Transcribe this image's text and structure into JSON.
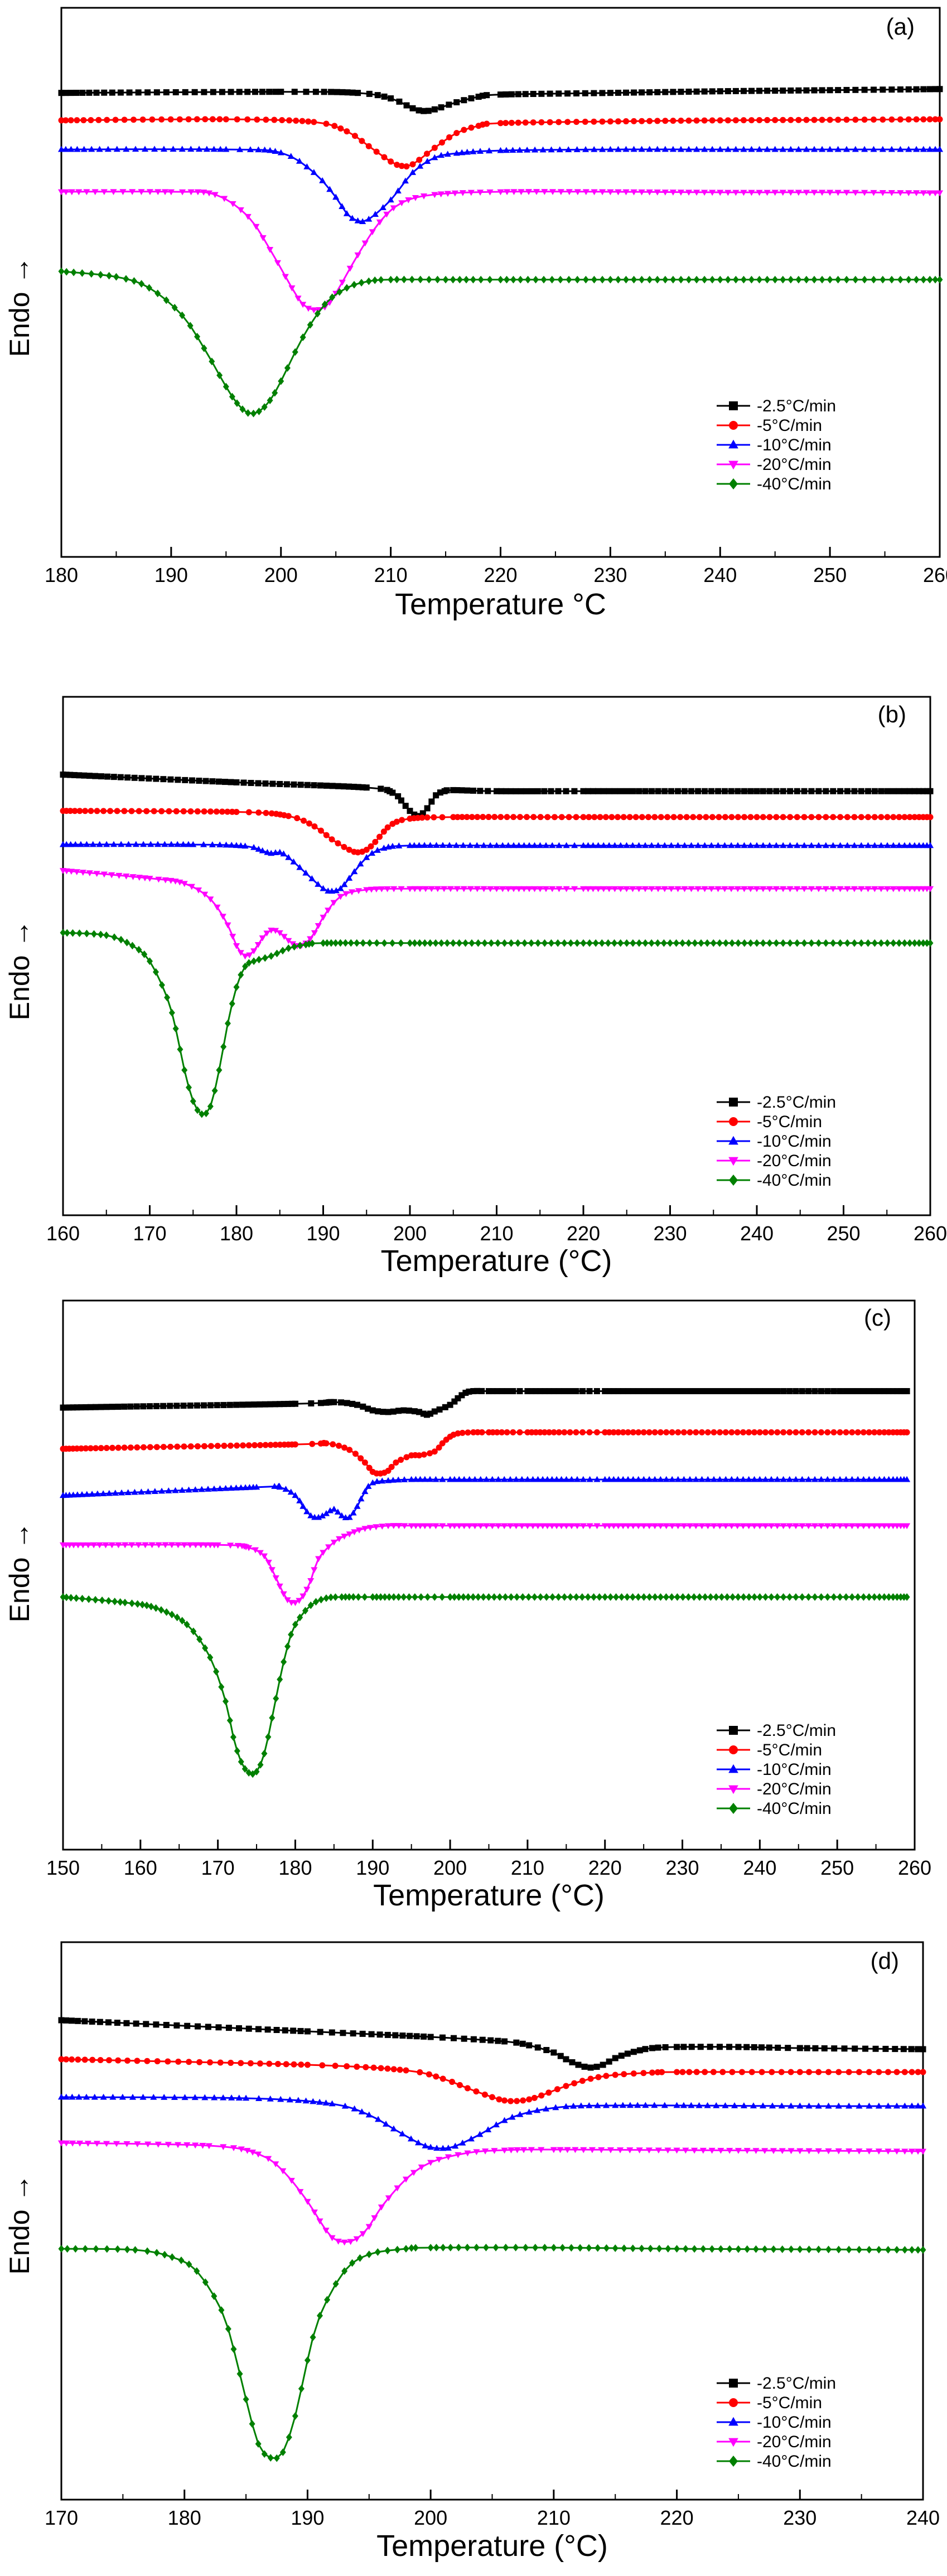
{
  "chart_data": [
    {
      "type": "line",
      "panel_label": "(a)",
      "xlabel": "Temperature °C",
      "ylabel": "Endo →",
      "xlim": [
        180,
        260
      ],
      "xticks": [
        180,
        190,
        200,
        210,
        220,
        230,
        240,
        250,
        260
      ],
      "ylim": [
        0,
        1
      ],
      "grid": false,
      "legend_position": "bottom-right",
      "series": [
        {
          "name": "-2.5°C/min",
          "color": "#000000",
          "marker": "square",
          "x": [
            180,
            200,
            207,
            210,
            212,
            213,
            214,
            216,
            218,
            220,
            230,
            240,
            250,
            260
          ],
          "y": [
            0.845,
            0.847,
            0.845,
            0.835,
            0.817,
            0.812,
            0.815,
            0.828,
            0.838,
            0.842,
            0.845,
            0.848,
            0.85,
            0.852
          ]
        },
        {
          "name": "-5°C/min",
          "color": "#ff0000",
          "marker": "circle",
          "x": [
            180,
            195,
            203,
            206,
            208,
            210,
            211,
            212,
            214,
            216,
            218,
            220,
            230,
            240,
            250,
            260
          ],
          "y": [
            0.795,
            0.797,
            0.792,
            0.775,
            0.748,
            0.72,
            0.712,
            0.715,
            0.745,
            0.772,
            0.785,
            0.79,
            0.793,
            0.795,
            0.796,
            0.797
          ]
        },
        {
          "name": "-10°C/min",
          "color": "#0000ff",
          "marker": "triangle-up",
          "x": [
            180,
            195,
            200,
            203,
            205,
            206,
            207,
            208,
            210,
            212,
            214,
            216,
            220,
            230,
            240,
            250,
            260
          ],
          "y": [
            0.742,
            0.742,
            0.736,
            0.7,
            0.655,
            0.625,
            0.612,
            0.615,
            0.65,
            0.7,
            0.727,
            0.735,
            0.74,
            0.742,
            0.742,
            0.742,
            0.742
          ]
        },
        {
          "name": "-20°C/min",
          "color": "#ff00ff",
          "marker": "triangle-down",
          "x": [
            180,
            190,
            194,
            197,
            199,
            201,
            202,
            203,
            204,
            205,
            207,
            209,
            211,
            214,
            220,
            230,
            240,
            250,
            260
          ],
          "y": [
            0.665,
            0.665,
            0.66,
            0.62,
            0.56,
            0.49,
            0.46,
            0.45,
            0.455,
            0.48,
            0.55,
            0.61,
            0.645,
            0.66,
            0.665,
            0.665,
            0.664,
            0.664,
            0.663
          ]
        },
        {
          "name": "-40°C/min",
          "color": "#008000",
          "marker": "diamond",
          "x": [
            180,
            185,
            188,
            191,
            193,
            195,
            196,
            197,
            198,
            199,
            200,
            202,
            204,
            206,
            208,
            210,
            215,
            220,
            230,
            240,
            250,
            260
          ],
          "y": [
            0.52,
            0.51,
            0.49,
            0.44,
            0.38,
            0.31,
            0.28,
            0.262,
            0.265,
            0.285,
            0.32,
            0.4,
            0.46,
            0.49,
            0.502,
            0.505,
            0.505,
            0.505,
            0.505,
            0.505,
            0.505,
            0.505
          ]
        }
      ]
    },
    {
      "type": "line",
      "panel_label": "(b)",
      "xlabel": "Temperature (°C)",
      "ylabel": "Endo →",
      "xlim": [
        160,
        260
      ],
      "xticks": [
        160,
        170,
        180,
        190,
        200,
        210,
        220,
        230,
        240,
        250,
        260
      ],
      "ylim": [
        0,
        1
      ],
      "grid": false,
      "legend_position": "bottom-right",
      "series": [
        {
          "name": "-2.5°C/min",
          "color": "#000000",
          "marker": "square",
          "x": [
            160,
            180,
            195,
            198,
            199,
            200,
            201,
            202,
            203,
            204,
            205,
            210,
            220,
            240,
            260
          ],
          "y": [
            0.85,
            0.835,
            0.825,
            0.815,
            0.8,
            0.78,
            0.77,
            0.785,
            0.81,
            0.818,
            0.82,
            0.818,
            0.818,
            0.818,
            0.818
          ]
        },
        {
          "name": "-5°C/min",
          "color": "#ff0000",
          "marker": "circle",
          "x": [
            160,
            180,
            186,
            189,
            191,
            193,
            194,
            195,
            196,
            197,
            198,
            200,
            205,
            220,
            240,
            260
          ],
          "y": [
            0.78,
            0.778,
            0.77,
            0.75,
            0.725,
            0.705,
            0.7,
            0.705,
            0.72,
            0.74,
            0.755,
            0.765,
            0.768,
            0.768,
            0.768,
            0.768
          ]
        },
        {
          "name": "-10°C/min",
          "color": "#0000ff",
          "marker": "triangle-up",
          "x": [
            160,
            175,
            181,
            183,
            184,
            185,
            186,
            188,
            190,
            191,
            192,
            193,
            195,
            197,
            200,
            210,
            220,
            240,
            260
          ],
          "y": [
            0.715,
            0.715,
            0.712,
            0.703,
            0.698,
            0.7,
            0.69,
            0.66,
            0.63,
            0.625,
            0.63,
            0.65,
            0.69,
            0.708,
            0.713,
            0.713,
            0.713,
            0.713,
            0.713
          ]
        },
        {
          "name": "-20°C/min",
          "color": "#ff00ff",
          "marker": "triangle-down",
          "x": [
            160,
            170,
            174,
            177,
            179,
            180,
            181,
            182,
            183,
            184,
            185,
            186,
            187,
            188,
            189,
            190,
            192,
            195,
            200,
            210,
            220,
            240,
            260
          ],
          "y": [
            0.665,
            0.65,
            0.64,
            0.61,
            0.56,
            0.52,
            0.5,
            0.51,
            0.535,
            0.55,
            0.545,
            0.53,
            0.52,
            0.525,
            0.545,
            0.575,
            0.615,
            0.628,
            0.63,
            0.63,
            0.63,
            0.63,
            0.63
          ]
        },
        {
          "name": "-40°C/min",
          "color": "#008000",
          "marker": "diamond",
          "x": [
            160,
            165,
            168,
            170,
            172,
            173,
            174,
            175,
            176,
            177,
            178,
            179,
            180,
            181,
            182,
            184,
            186,
            188,
            190,
            200,
            220,
            240,
            260
          ],
          "y": [
            0.545,
            0.54,
            0.52,
            0.49,
            0.42,
            0.36,
            0.28,
            0.22,
            0.195,
            0.21,
            0.28,
            0.37,
            0.44,
            0.48,
            0.49,
            0.5,
            0.515,
            0.522,
            0.525,
            0.525,
            0.525,
            0.525,
            0.525
          ]
        }
      ]
    },
    {
      "type": "line",
      "panel_label": "(c)",
      "xlabel": "Temperature (°C)",
      "ylabel": "Endo →",
      "xlim": [
        150,
        260
      ],
      "xticks": [
        150,
        160,
        170,
        180,
        190,
        200,
        210,
        220,
        230,
        240,
        250,
        260
      ],
      "ylim": [
        0,
        1
      ],
      "grid": false,
      "legend_position": "bottom-right",
      "series": [
        {
          "name": "-2.5°C/min",
          "color": "#000000",
          "marker": "square",
          "x": [
            150,
            180,
            185,
            188,
            190,
            192,
            194,
            196,
            197,
            198,
            200,
            201,
            202,
            203,
            205,
            210,
            220,
            240,
            259
          ],
          "y": [
            0.805,
            0.812,
            0.815,
            0.81,
            0.8,
            0.797,
            0.8,
            0.797,
            0.792,
            0.798,
            0.81,
            0.822,
            0.832,
            0.835,
            0.835,
            0.835,
            0.835,
            0.835,
            0.835
          ]
        },
        {
          "name": "-5°C/min",
          "color": "#ff0000",
          "marker": "circle",
          "x": [
            150,
            180,
            184,
            187,
            189,
            190,
            191,
            192,
            193,
            195,
            196,
            198,
            199,
            200,
            201,
            203,
            205,
            210,
            220,
            240,
            259
          ],
          "y": [
            0.73,
            0.738,
            0.74,
            0.728,
            0.705,
            0.688,
            0.685,
            0.69,
            0.705,
            0.718,
            0.718,
            0.725,
            0.74,
            0.752,
            0.758,
            0.76,
            0.76,
            0.76,
            0.76,
            0.76,
            0.76
          ]
        },
        {
          "name": "-10°C/min",
          "color": "#0000ff",
          "marker": "triangle-up",
          "x": [
            150,
            175,
            178,
            180,
            181,
            182,
            183,
            184,
            185,
            186,
            187,
            188,
            189,
            190,
            192,
            195,
            200,
            210,
            220,
            240,
            259
          ],
          "y": [
            0.645,
            0.66,
            0.66,
            0.645,
            0.625,
            0.608,
            0.605,
            0.612,
            0.62,
            0.608,
            0.605,
            0.625,
            0.652,
            0.668,
            0.672,
            0.674,
            0.674,
            0.674,
            0.674,
            0.674,
            0.674
          ]
        },
        {
          "name": "-20°C/min",
          "color": "#ff00ff",
          "marker": "triangle-down",
          "x": [
            150,
            170,
            174,
            176,
            177,
            178,
            179,
            180,
            181,
            182,
            183,
            185,
            187,
            189,
            192,
            195,
            200,
            210,
            220,
            240,
            259
          ],
          "y": [
            0.555,
            0.555,
            0.55,
            0.535,
            0.51,
            0.48,
            0.455,
            0.45,
            0.462,
            0.49,
            0.53,
            0.56,
            0.575,
            0.585,
            0.59,
            0.59,
            0.59,
            0.59,
            0.59,
            0.59,
            0.59
          ]
        },
        {
          "name": "-40°C/min",
          "color": "#008000",
          "marker": "diamond",
          "x": [
            150,
            158,
            162,
            166,
            169,
            171,
            172,
            173,
            174,
            175,
            176,
            177,
            178,
            179,
            180,
            182,
            184,
            186,
            190,
            200,
            220,
            240,
            259
          ],
          "y": [
            0.46,
            0.45,
            0.44,
            0.41,
            0.35,
            0.27,
            0.205,
            0.16,
            0.14,
            0.142,
            0.175,
            0.24,
            0.31,
            0.37,
            0.41,
            0.445,
            0.458,
            0.46,
            0.46,
            0.46,
            0.46,
            0.46,
            0.46
          ]
        }
      ]
    },
    {
      "type": "line",
      "panel_label": "(d)",
      "xlabel": "Temperature (°C)",
      "ylabel": "Endo →",
      "xlim": [
        170,
        240
      ],
      "xticks": [
        170,
        180,
        190,
        200,
        210,
        220,
        230,
        240
      ],
      "ylim": [
        0,
        1
      ],
      "grid": false,
      "legend_position": "bottom-right",
      "series": [
        {
          "name": "-2.5°C/min",
          "color": "#000000",
          "marker": "square",
          "x": [
            170,
            190,
            200,
            206,
            208,
            210,
            211,
            212,
            213,
            214,
            215,
            216,
            217,
            218,
            220,
            225,
            230,
            240
          ],
          "y": [
            0.86,
            0.84,
            0.83,
            0.822,
            0.815,
            0.802,
            0.79,
            0.78,
            0.775,
            0.78,
            0.792,
            0.8,
            0.806,
            0.81,
            0.812,
            0.812,
            0.81,
            0.808
          ]
        },
        {
          "name": "-5°C/min",
          "color": "#ff0000",
          "marker": "circle",
          "x": [
            170,
            190,
            198,
            201,
            203,
            205,
            206,
            207,
            208,
            209,
            211,
            213,
            215,
            218,
            220,
            230,
            240
          ],
          "y": [
            0.79,
            0.78,
            0.77,
            0.755,
            0.738,
            0.722,
            0.716,
            0.715,
            0.718,
            0.725,
            0.742,
            0.755,
            0.762,
            0.766,
            0.767,
            0.767,
            0.767
          ]
        },
        {
          "name": "-10°C/min",
          "color": "#0000ff",
          "marker": "triangle-up",
          "x": [
            170,
            185,
            192,
            195,
            197,
            199,
            200,
            201,
            202,
            204,
            206,
            208,
            211,
            215,
            220,
            230,
            240
          ],
          "y": [
            0.722,
            0.72,
            0.71,
            0.69,
            0.665,
            0.64,
            0.632,
            0.63,
            0.634,
            0.655,
            0.68,
            0.695,
            0.705,
            0.707,
            0.707,
            0.706,
            0.706
          ]
        },
        {
          "name": "-20°C/min",
          "color": "#ff00ff",
          "marker": "triangle-down",
          "x": [
            170,
            182,
            186,
            188,
            190,
            191,
            192,
            193,
            194,
            195,
            196,
            198,
            200,
            203,
            206,
            210,
            220,
            230,
            240
          ],
          "y": [
            0.64,
            0.635,
            0.62,
            0.59,
            0.535,
            0.5,
            0.47,
            0.462,
            0.468,
            0.49,
            0.525,
            0.575,
            0.605,
            0.622,
            0.627,
            0.628,
            0.627,
            0.626,
            0.625
          ]
        },
        {
          "name": "-40°C/min",
          "color": "#008000",
          "marker": "diamond",
          "x": [
            170,
            176,
            179,
            181,
            183,
            184,
            185,
            186,
            187,
            188,
            189,
            190,
            191,
            193,
            195,
            198,
            200,
            210,
            220,
            230,
            240
          ],
          "y": [
            0.45,
            0.448,
            0.435,
            0.41,
            0.34,
            0.27,
            0.18,
            0.1,
            0.075,
            0.085,
            0.15,
            0.25,
            0.33,
            0.41,
            0.44,
            0.45,
            0.452,
            0.452,
            0.45,
            0.449,
            0.448
          ]
        }
      ]
    }
  ]
}
